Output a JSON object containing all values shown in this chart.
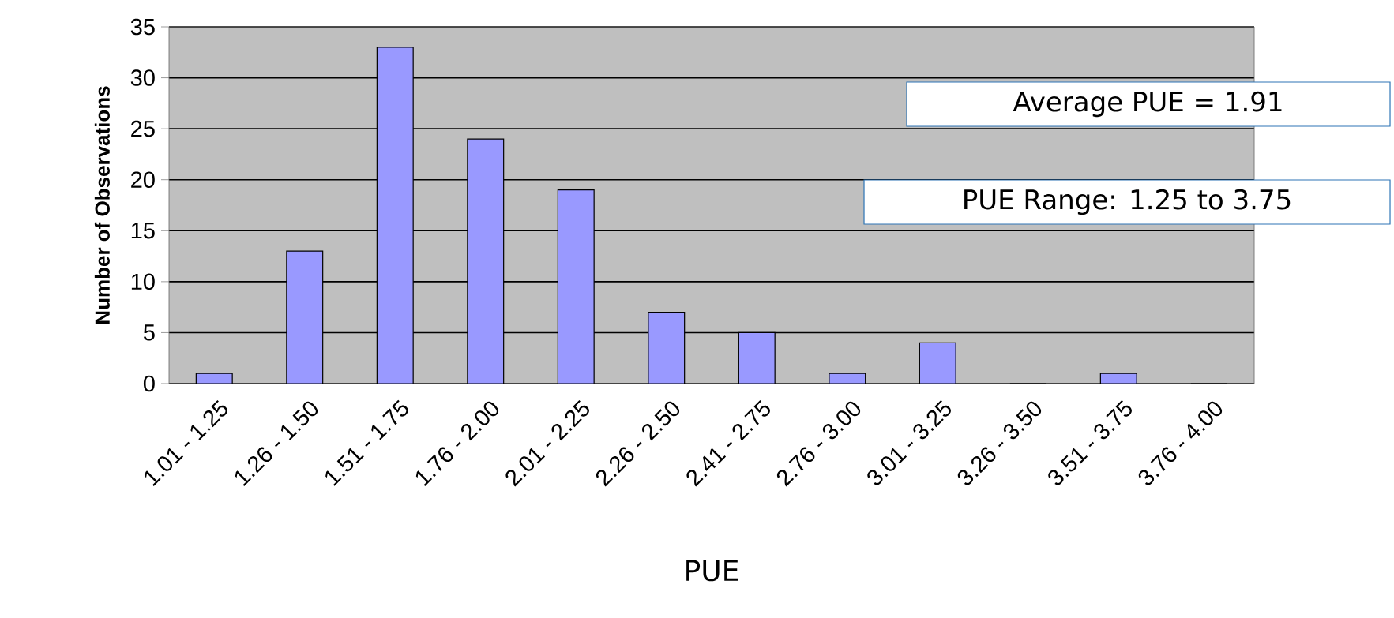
{
  "chart_data": {
    "type": "bar",
    "xlabel": "PUE",
    "ylabel": "Number of Observations",
    "categories": [
      "1.01 - 1.25",
      "1.26 - 1.50",
      "1.51 - 1.75",
      "1.76 - 2.00",
      "2.01 - 2.25",
      "2.26 - 2.50",
      "2.41 - 2.75",
      "2.76 - 3.00",
      "3.01 - 3.25",
      "3.26 - 3.50",
      "3.51 - 3.75",
      "3.76 - 4.00"
    ],
    "values": [
      1,
      13,
      33,
      24,
      19,
      7,
      5,
      1,
      4,
      0,
      1,
      0
    ],
    "color": "#9999ff",
    "ylim": [
      0,
      35
    ],
    "yticks": [
      0,
      5,
      10,
      15,
      20,
      25,
      30,
      35
    ],
    "grid": "y",
    "annotations": [
      "Average PUE = 1.91",
      "PUE Range: 1.25 to 3.75"
    ]
  }
}
